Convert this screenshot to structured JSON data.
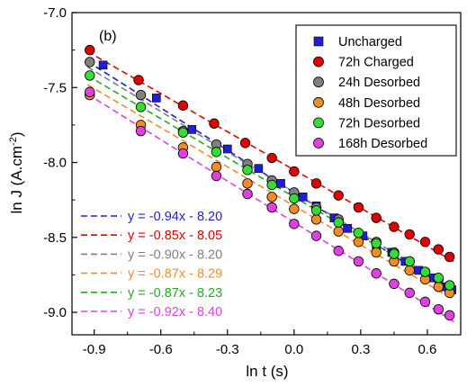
{
  "chart_data": {
    "type": "scatter",
    "panel_label": "(b)",
    "xlabel": "ln t (s)",
    "ylabel": "ln J (A.cm",
    "ylabel_sup": "-2",
    "ylabel_close": ")",
    "xlim": [
      -1.0,
      0.75
    ],
    "ylim": [
      -9.15,
      -7.0
    ],
    "xticks": [
      -0.9,
      -0.6,
      -0.3,
      0.0,
      0.3,
      0.6
    ],
    "xtick_labels": [
      "-0.9",
      "-0.6",
      "-0.3",
      "0.0",
      "0.3",
      "0.6"
    ],
    "yticks": [
      -9.0,
      -8.5,
      -8.0,
      -7.5,
      -7.0
    ],
    "ytick_labels": [
      "-9.0",
      "-8.5",
      "-8.0",
      "-7.5",
      "-7.0"
    ],
    "legend_position": "top-right",
    "series": [
      {
        "name": "Uncharged",
        "marker": "square",
        "color": "#1f1fd6",
        "fit_color": "#1f1fd6",
        "fit": {
          "slope": -0.94,
          "intercept": -8.2
        },
        "equation": "y = -0.94x - 8.20",
        "x": [
          -0.86,
          -0.62,
          -0.46,
          -0.3,
          -0.16,
          -0.06,
          0.04,
          0.1,
          0.18,
          0.24,
          0.31,
          0.37,
          0.44,
          0.5,
          0.56,
          0.62,
          0.68,
          0.71
        ],
        "y": [
          -7.35,
          -7.57,
          -7.78,
          -7.91,
          -8.04,
          -8.14,
          -8.23,
          -8.29,
          -8.37,
          -8.44,
          -8.49,
          -8.55,
          -8.6,
          -8.66,
          -8.72,
          -8.77,
          -8.83,
          -8.85
        ]
      },
      {
        "name": "72h Charged",
        "marker": "circle",
        "color": "#e00000",
        "fit_color": "#e00000",
        "fit": {
          "slope": -0.85,
          "intercept": -8.05
        },
        "equation": "y = -0.85x - 8.05",
        "x": [
          -0.92,
          -0.7,
          -0.5,
          -0.36,
          -0.22,
          -0.1,
          0.0,
          0.1,
          0.2,
          0.29,
          0.37,
          0.45,
          0.52,
          0.59,
          0.65,
          0.7
        ],
        "y": [
          -7.25,
          -7.45,
          -7.62,
          -7.74,
          -7.87,
          -7.97,
          -8.06,
          -8.14,
          -8.22,
          -8.3,
          -8.37,
          -8.43,
          -8.48,
          -8.53,
          -8.58,
          -8.63
        ]
      },
      {
        "name": "24h Desorbed",
        "marker": "circle",
        "color": "#808080",
        "fit_color": "#808080",
        "fit": {
          "slope": -0.9,
          "intercept": -8.2
        },
        "equation": "y = -0.90x - 8.20",
        "x": [
          -0.92,
          -0.69,
          -0.5,
          -0.35,
          -0.21,
          -0.1,
          0.0,
          0.1,
          0.2,
          0.29,
          0.37,
          0.45,
          0.52,
          0.59,
          0.65,
          0.7
        ],
        "y": [
          -7.33,
          -7.55,
          -7.79,
          -7.88,
          -8.01,
          -8.12,
          -8.2,
          -8.3,
          -8.38,
          -8.47,
          -8.53,
          -8.6,
          -8.66,
          -8.73,
          -8.78,
          -8.82
        ]
      },
      {
        "name": "48h Desorbed",
        "marker": "circle",
        "color": "#f28c28",
        "fit_color": "#f28c28",
        "fit": {
          "slope": -0.87,
          "intercept": -8.29
        },
        "equation": "y = -0.87x - 8.29",
        "x": [
          -0.92,
          -0.69,
          -0.5,
          -0.35,
          -0.21,
          -0.1,
          0.0,
          0.1,
          0.2,
          0.29,
          0.37,
          0.45,
          0.52,
          0.59,
          0.65,
          0.7
        ],
        "y": [
          -7.55,
          -7.75,
          -7.9,
          -8.03,
          -8.14,
          -8.23,
          -8.31,
          -8.38,
          -8.46,
          -8.53,
          -8.6,
          -8.66,
          -8.72,
          -8.78,
          -8.83,
          -8.87
        ]
      },
      {
        "name": "72h Desorbed",
        "marker": "circle",
        "color": "#33dd33",
        "fit_color": "#22aa22",
        "fit": {
          "slope": -0.87,
          "intercept": -8.23
        },
        "equation": "y = -0.87x - 8.23",
        "x": [
          -0.92,
          -0.69,
          -0.5,
          -0.35,
          -0.21,
          -0.1,
          0.0,
          0.1,
          0.2,
          0.29,
          0.37,
          0.45,
          0.52,
          0.59,
          0.65,
          0.7
        ],
        "y": [
          -7.42,
          -7.63,
          -7.8,
          -7.93,
          -8.05,
          -8.15,
          -8.24,
          -8.32,
          -8.4,
          -8.47,
          -8.54,
          -8.61,
          -8.66,
          -8.73,
          -8.77,
          -8.82
        ]
      },
      {
        "name": "168h Desorbed",
        "marker": "circle",
        "color": "#e040e0",
        "fit_color": "#e040e0",
        "fit": {
          "slope": -0.92,
          "intercept": -8.4
        },
        "equation": "y = -0.92x - 8.40",
        "x": [
          -0.92,
          -0.69,
          -0.5,
          -0.35,
          -0.21,
          -0.1,
          0.0,
          0.1,
          0.2,
          0.29,
          0.37,
          0.45,
          0.52,
          0.59,
          0.65,
          0.7
        ],
        "y": [
          -7.53,
          -7.79,
          -7.94,
          -8.09,
          -8.21,
          -8.3,
          -8.41,
          -8.49,
          -8.59,
          -8.66,
          -8.74,
          -8.81,
          -8.87,
          -8.93,
          -8.98,
          -9.02
        ]
      }
    ]
  }
}
